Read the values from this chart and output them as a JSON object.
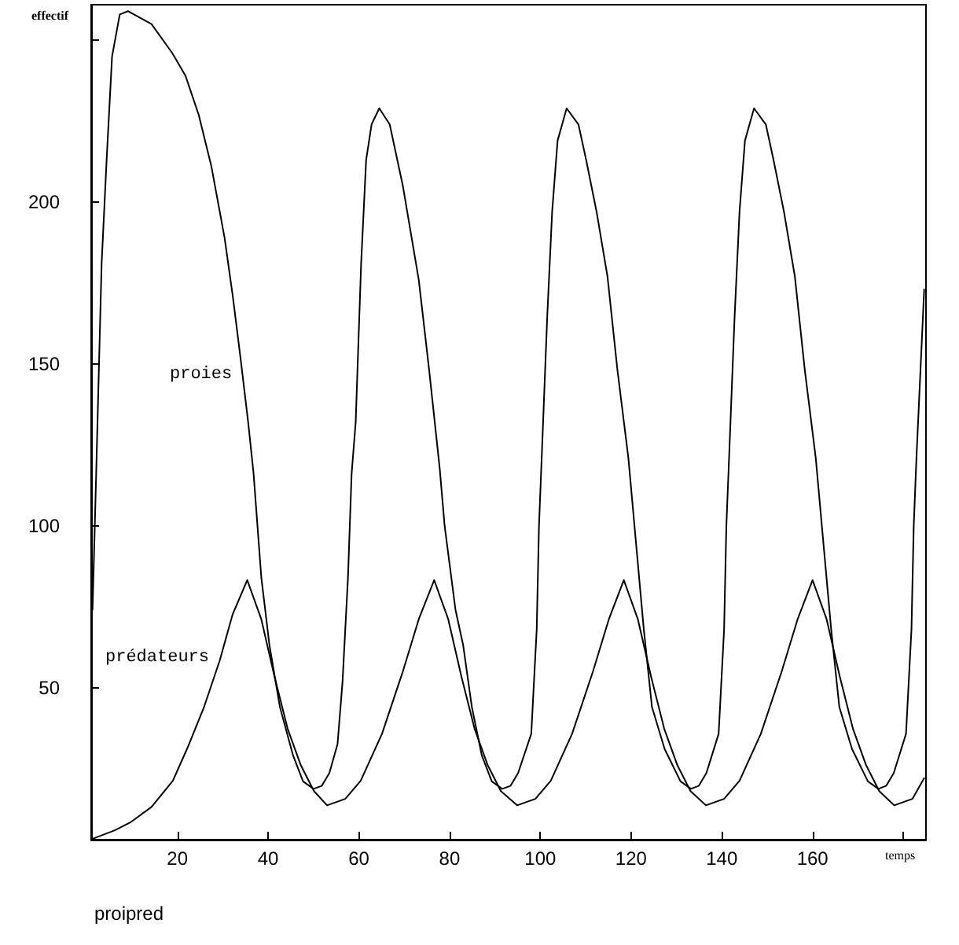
{
  "chart_data": {
    "type": "line",
    "xlabel": "temps",
    "ylabel": "effectif",
    "xlim": [
      1,
      185
    ],
    "xticks": [
      20,
      40,
      60,
      80,
      100,
      120,
      140,
      160,
      {
        "value": 180,
        "label": null
      }
    ],
    "ylim": [
      3,
      261
    ],
    "yticks": [
      50,
      100,
      150,
      200,
      {
        "value": 250,
        "label": null
      }
    ],
    "grid": false,
    "marker": "none",
    "line_style": "solid",
    "annotations": [
      "proipred"
    ],
    "series": [
      {
        "name": "proies",
        "color": "#000000",
        "x": [
          1.3,
          2.1,
          3.3,
          4.4,
          5.6,
          7.3,
          9.1,
          14.3,
          18.9,
          21.8,
          24.7,
          27.5,
          30.4,
          32.2,
          33.9,
          35.6,
          36.8,
          38.5,
          40.3,
          42.6,
          45.5,
          47.7,
          50,
          51.8,
          53.5,
          55.3,
          56.4,
          57.6,
          58.4,
          59.3,
          60.5,
          61.6,
          62.8,
          64.5,
          66.8,
          69.7,
          73.2,
          75.5,
          77.8,
          78.9,
          81.3,
          83,
          84.9,
          87.1,
          89.3,
          91.6,
          93.4,
          95.1,
          98,
          99.2,
          99.7,
          100.3,
          101.5,
          102.6,
          103.8,
          105.8,
          108.4,
          110.1,
          112.4,
          114.8,
          117,
          119.4,
          122.8,
          124.6,
          127.4,
          130.9,
          133.2,
          134.9,
          136.6,
          139.3,
          140.5,
          141,
          141.6,
          142.8,
          143.9,
          145.1,
          147.1,
          149.7,
          151.4,
          153.7,
          156.1,
          158.3,
          160.7,
          164.1,
          165.9,
          168.7,
          172.2,
          174.5,
          176.2,
          177.9,
          180.6,
          181.8,
          182.3,
          182.9,
          184.6
        ],
        "values": [
          74,
          116,
          181,
          213,
          245,
          258,
          259,
          255,
          246,
          239,
          227,
          211,
          189,
          171,
          152,
          132,
          116,
          84,
          63,
          44,
          29,
          21,
          18.7,
          19.6,
          23.6,
          32.5,
          51.8,
          84,
          116,
          132,
          181,
          213,
          224,
          229,
          224,
          205,
          176,
          148,
          118,
          100,
          74,
          63,
          44,
          29,
          21,
          18.7,
          19.6,
          23.6,
          35.7,
          68,
          100,
          121,
          164,
          197,
          219,
          229,
          224,
          213,
          197,
          177,
          148,
          121,
          68,
          44,
          31,
          21,
          18.7,
          19.6,
          23.6,
          35.7,
          68,
          100,
          121,
          164,
          197,
          219,
          229,
          224,
          213,
          197,
          177,
          148,
          121,
          68,
          44,
          31,
          21,
          18.7,
          19.6,
          23.6,
          35.7,
          68,
          100,
          121,
          173
        ]
      },
      {
        "name": "prédateurs",
        "color": "#000000",
        "x": [
          1,
          6.2,
          9.6,
          14.3,
          19,
          22.3,
          25.8,
          29.3,
          32.2,
          35.4,
          38.5,
          41.4,
          44.3,
          47.2,
          50.1,
          53,
          57,
          60.4,
          65.1,
          69.7,
          73.2,
          76.6,
          79.7,
          82.6,
          85.5,
          88.4,
          91.3,
          94.9,
          98.9,
          102.3,
          107,
          111.6,
          115.1,
          118.4,
          121.5,
          124.4,
          127.3,
          130.2,
          133.1,
          136.5,
          140.5,
          143.9,
          148.6,
          153.2,
          156.7,
          160,
          163.1,
          166,
          168.9,
          171.8,
          174.7,
          178,
          182,
          184.6
        ],
        "values": [
          3.1,
          5.9,
          8.3,
          13.1,
          21.2,
          31.6,
          43.7,
          58.2,
          72.7,
          83.2,
          71.1,
          53.4,
          37.3,
          26,
          18,
          13.6,
          15.6,
          21.2,
          35.7,
          55,
          71.1,
          83.2,
          71.1,
          53.4,
          37.3,
          26,
          18,
          13.6,
          15.6,
          21.2,
          35.7,
          55,
          71.1,
          83.2,
          71.1,
          53.4,
          37.3,
          26,
          18,
          13.6,
          15.6,
          21.2,
          35.7,
          55,
          71.1,
          83.2,
          71.1,
          53.4,
          37.3,
          26,
          18,
          13.6,
          15.6,
          22
        ]
      }
    ]
  }
}
